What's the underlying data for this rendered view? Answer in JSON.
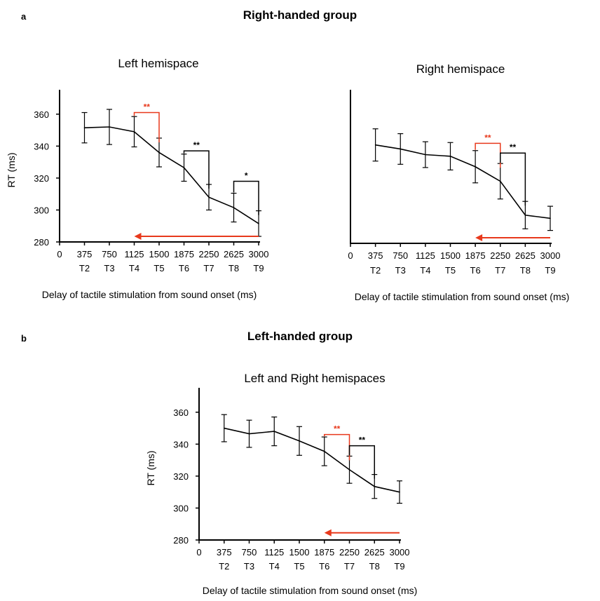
{
  "figure": {
    "panel_a_letter": "a",
    "panel_b_letter": "b",
    "group_a_title": "Right-handed group",
    "group_b_title": "Left-handed group"
  },
  "chart_data": [
    {
      "type": "line",
      "title": "Left hemispace",
      "xlabel": "Delay of tactile stimulation from sound onset (ms)",
      "ylabel": "RT (ms)",
      "x_ticks": [
        0,
        375,
        750,
        1125,
        1500,
        1875,
        2250,
        2625,
        3000
      ],
      "x_tick_labels": [
        "0",
        "375",
        "750",
        "1125",
        "1500",
        "1875",
        "2250",
        "2625",
        "3000"
      ],
      "x": [
        375,
        750,
        1125,
        1500,
        1875,
        2250,
        2625,
        3000
      ],
      "time_labels": [
        "T2",
        "T3",
        "T4",
        "T5",
        "T6",
        "T7",
        "T8",
        "T9"
      ],
      "ylim": [
        280,
        370
      ],
      "y_ticks": [
        280,
        300,
        320,
        340,
        360
      ],
      "show_y_tick_labels": true,
      "series": [
        {
          "values": [
            351.5,
            352,
            349,
            336,
            326.5,
            308,
            301.5,
            291.5
          ],
          "errors": [
            9.5,
            11,
            9.5,
            9,
            8.5,
            8,
            9,
            8
          ]
        }
      ],
      "annotations": [
        {
          "from": 1125,
          "to": 1500,
          "label": "**",
          "color": "#e8391c",
          "level": 361
        },
        {
          "from": 1875,
          "to": 2250,
          "label": "**",
          "color": "#000000",
          "level": 337
        },
        {
          "from": 2625,
          "to": 3000,
          "label": "*",
          "color": "#000000",
          "level": 318
        }
      ],
      "arrow": {
        "from": 3000,
        "to": 1125,
        "y": 283.5,
        "color": "#e8391c"
      }
    },
    {
      "type": "line",
      "title": "Right hemispace",
      "xlabel": "Delay of tactile stimulation from sound onset (ms)",
      "ylabel": "",
      "x_ticks": [
        0,
        375,
        750,
        1125,
        1500,
        1875,
        2250,
        2625,
        3000
      ],
      "x_tick_labels": [
        "0",
        "375",
        "750",
        "1125",
        "1500",
        "1875",
        "2250",
        "2625",
        "3000"
      ],
      "x": [
        375,
        750,
        1125,
        1500,
        1875,
        2250,
        2625,
        3000
      ],
      "time_labels": [
        "T2",
        "T3",
        "T4",
        "T5",
        "T6",
        "T7",
        "T8",
        "T9"
      ],
      "ylim": [
        280,
        370
      ],
      "y_ticks": [],
      "show_y_tick_labels": false,
      "series": [
        {
          "values": [
            341,
            338.5,
            335,
            334,
            327.5,
            318.5,
            297.5,
            295.5
          ],
          "errors": [
            10,
            9.5,
            8,
            8.5,
            10,
            11,
            8.5,
            7.5
          ]
        }
      ],
      "annotations": [
        {
          "from": 1875,
          "to": 2250,
          "label": "**",
          "color": "#e8391c",
          "level": 342
        },
        {
          "from": 2250,
          "to": 2625,
          "label": "**",
          "color": "#000000",
          "level": 336
        }
      ],
      "arrow": {
        "from": 3000,
        "to": 1875,
        "y": 283.5,
        "color": "#e8391c"
      }
    },
    {
      "type": "line",
      "title": "Left and Right hemispaces",
      "xlabel": "Delay of tactile stimulation from sound onset (ms)",
      "ylabel": "RT (ms)",
      "x_ticks": [
        0,
        375,
        750,
        1125,
        1500,
        1875,
        2250,
        2625,
        3000
      ],
      "x_tick_labels": [
        "0",
        "375",
        "750",
        "1125",
        "1500",
        "1875",
        "2250",
        "2625",
        "3000"
      ],
      "x": [
        375,
        750,
        1125,
        1500,
        1875,
        2250,
        2625,
        3000
      ],
      "time_labels": [
        "T2",
        "T3",
        "T4",
        "T5",
        "T6",
        "T7",
        "T8",
        "T9"
      ],
      "ylim": [
        280,
        370
      ],
      "y_ticks": [
        280,
        300,
        320,
        340,
        360
      ],
      "show_y_tick_labels": true,
      "series": [
        {
          "values": [
            350,
            346.5,
            348,
            342,
            335.5,
            324,
            313.5,
            310
          ],
          "errors": [
            8.5,
            8.5,
            9,
            9,
            9,
            8.5,
            7.5,
            7
          ]
        }
      ],
      "annotations": [
        {
          "from": 1875,
          "to": 2250,
          "label": "**",
          "color": "#e8391c",
          "level": 346
        },
        {
          "from": 2250,
          "to": 2625,
          "label": "**",
          "color": "#000000",
          "level": 339
        }
      ],
      "arrow": {
        "from": 3000,
        "to": 1875,
        "y": 284.5,
        "color": "#e8391c"
      }
    }
  ]
}
